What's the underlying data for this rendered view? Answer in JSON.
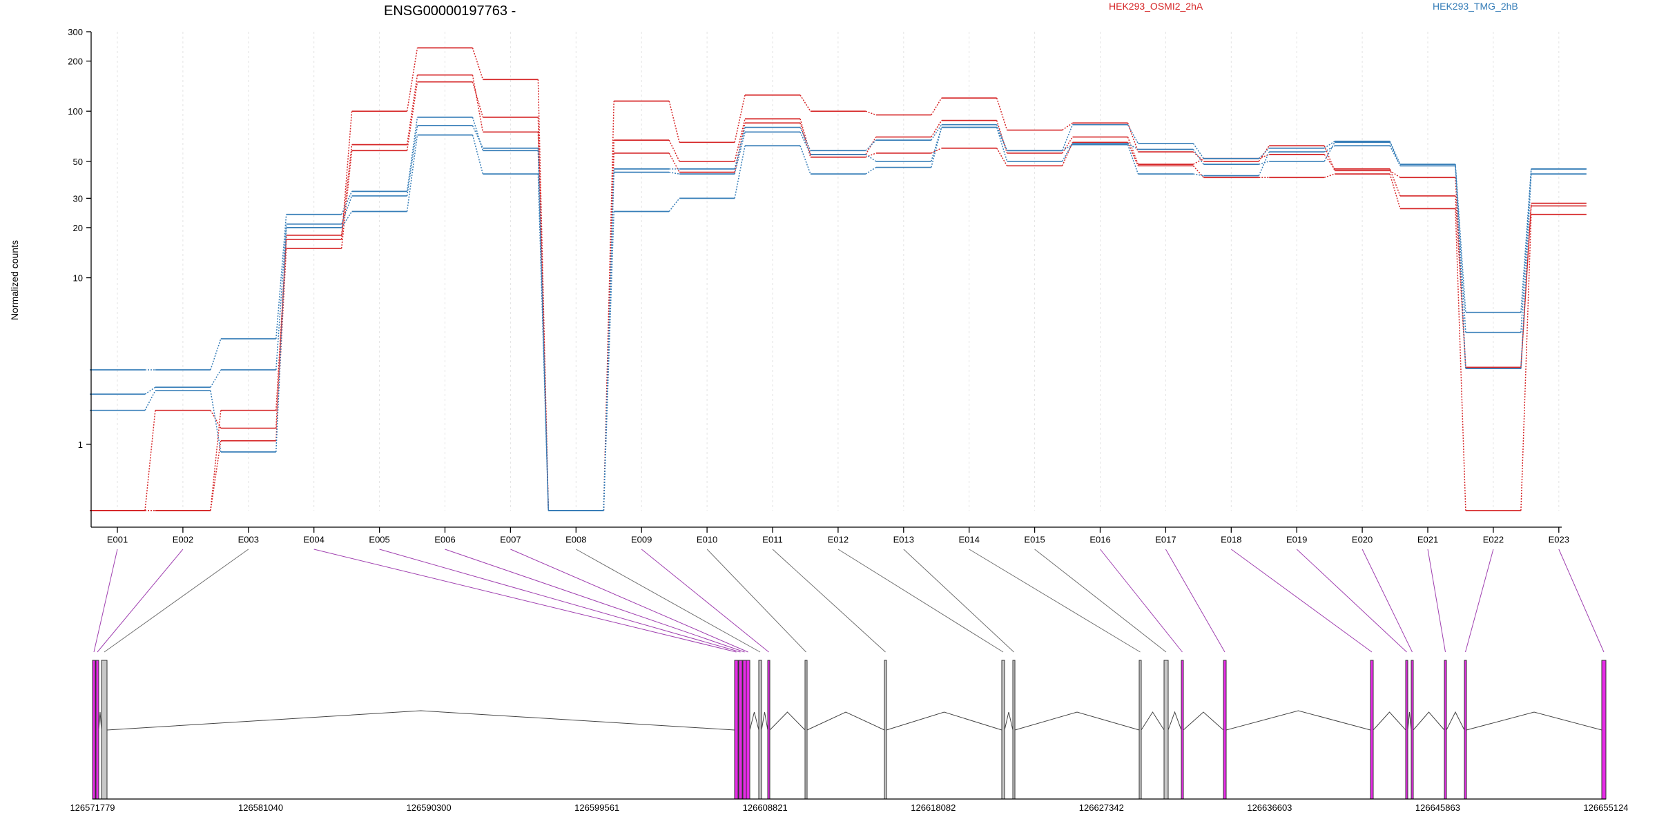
{
  "chart_data": {
    "type": "line",
    "title": "ENSG00000197763 -",
    "ylabel": "Normalized counts",
    "yscale": "log",
    "ylim": [
      0.4,
      300
    ],
    "yticks": [
      "1",
      "10",
      "20",
      "30",
      "50",
      "100",
      "200",
      "300"
    ],
    "categories": [
      "E001",
      "E002",
      "E003",
      "E004",
      "E005",
      "E006",
      "E007",
      "E008",
      "E009",
      "E010",
      "E011",
      "E012",
      "E013",
      "E014",
      "E015",
      "E016",
      "E017",
      "E018",
      "E019",
      "E020",
      "E021",
      "E022",
      "E023"
    ],
    "series": [
      {
        "name": "HEK293_OSMI2_2hA",
        "color": "#d62728",
        "values": [
          0.4,
          0.4,
          1.6,
          17,
          100,
          240,
          155,
          0.4,
          115,
          65,
          125,
          100,
          95,
          120,
          77,
          85,
          57,
          50,
          62,
          44,
          40,
          2.9,
          27
        ]
      },
      {
        "color": "#d62728",
        "values": [
          0.4,
          1.6,
          1.25,
          18,
          63,
          165,
          75,
          0.4,
          67,
          50,
          90,
          55,
          70,
          88,
          56,
          70,
          48,
          52,
          55,
          45,
          31,
          2.85,
          28
        ]
      },
      {
        "color": "#d62728",
        "values": [
          0.4,
          0.4,
          1.05,
          15,
          58,
          150,
          92,
          0.4,
          56,
          43,
          85,
          53,
          56,
          60,
          47,
          65,
          47,
          40,
          40,
          42,
          26,
          0.4,
          24
        ]
      },
      {
        "name": "HEK293_TMG_2hB",
        "color": "#377eb8",
        "values": [
          2.8,
          2.8,
          4.3,
          24,
          33,
          92,
          58,
          0.4,
          45,
          45,
          80,
          58,
          67,
          83,
          58,
          83,
          64,
          52,
          60,
          66,
          48,
          6.2,
          45
        ]
      },
      {
        "color": "#377eb8",
        "values": [
          2.0,
          2.2,
          2.8,
          21,
          31,
          82,
          60,
          0.4,
          43,
          42,
          75,
          55,
          50,
          80,
          50,
          64,
          59,
          48,
          50,
          65,
          47,
          4.7,
          45
        ]
      },
      {
        "color": "#377eb8",
        "values": [
          1.6,
          2.1,
          0.9,
          20,
          25,
          72,
          42,
          0.4,
          25,
          30,
          62,
          42,
          46,
          80,
          58,
          63,
          42,
          41,
          57,
          62,
          47,
          2.85,
          42
        ]
      }
    ],
    "gene_model": {
      "coordinate_ticks": [
        "126571779",
        "126581040",
        "126590300",
        "126599561",
        "126608821",
        "126618082",
        "126627342",
        "126636603",
        "126645863",
        "126655124"
      ],
      "exon_highlight": [
        true,
        true,
        false,
        true,
        true,
        true,
        true,
        false,
        true,
        false,
        false,
        false,
        false,
        false,
        false,
        true,
        true,
        true,
        true,
        true,
        true,
        true,
        true
      ],
      "highlight_color": "#e62be6",
      "plain_color": "#c8c8c8"
    }
  }
}
